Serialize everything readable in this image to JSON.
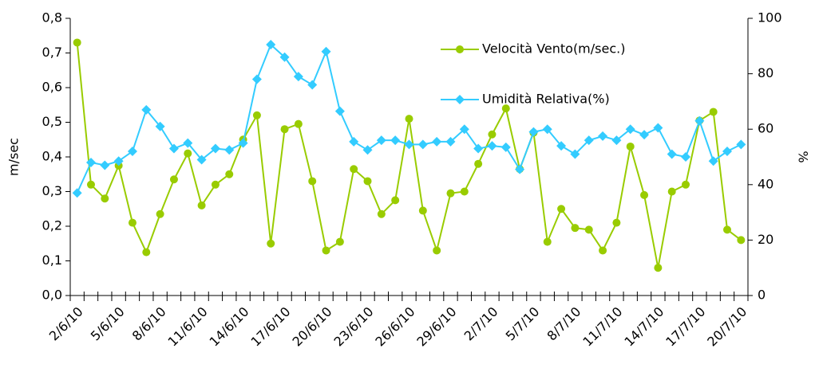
{
  "chart_data": {
    "type": "line",
    "y_label": "m/sec",
    "y2_label": "%",
    "categories": [
      "2/6/10",
      null,
      null,
      "5/6/10",
      null,
      null,
      "8/6/10",
      null,
      null,
      "11/6/10",
      null,
      null,
      "14/6/10",
      null,
      null,
      "17/6/10",
      null,
      null,
      "20/6/10",
      null,
      null,
      "23/6/10",
      null,
      null,
      "26/6/10",
      null,
      null,
      "29/6/10",
      null,
      null,
      "2/7/10",
      null,
      null,
      "5/7/10",
      null,
      null,
      "8/7/10",
      null,
      null,
      "11/7/10",
      null,
      null,
      "14/7/10",
      null,
      null,
      "17/7/10",
      null,
      null,
      "20/7/10"
    ],
    "series": [
      {
        "name": "Velocità Vento(m/sec.)",
        "color": "#99cc00",
        "marker": "circle",
        "values": [
          0.73,
          0.32,
          0.28,
          0.375,
          0.21,
          0.125,
          0.235,
          0.335,
          0.41,
          0.26,
          0.32,
          0.35,
          0.45,
          0.52,
          0.15,
          0.48,
          0.495,
          0.33,
          0.13,
          0.155,
          0.365,
          0.33,
          0.235,
          0.275,
          0.51,
          0.245,
          0.13,
          0.295,
          0.3,
          0.38,
          0.465,
          0.54,
          0.365,
          0.47,
          0.155,
          0.25,
          0.195,
          0.19,
          0.13,
          0.21,
          0.43,
          0.29,
          0.08,
          0.3,
          0.32,
          0.505,
          0.53,
          0.19,
          0.16
        ]
      },
      {
        "name": "Umidità Relativa(%)",
        "color": "#33ccff",
        "marker": "diamond",
        "axis": "y2",
        "values": [
          37,
          48,
          47,
          48.5,
          52,
          67,
          61,
          53,
          55,
          49,
          53,
          52.5,
          55,
          78,
          90.5,
          86,
          79,
          76,
          88,
          66.5,
          55.5,
          52.5,
          56,
          56,
          54.5,
          54.5,
          55.5,
          55.5,
          60,
          53,
          54,
          53.5,
          45.5,
          59,
          60,
          54,
          51,
          56,
          57.5,
          56,
          60,
          58,
          60.5,
          51,
          50,
          63,
          48.5,
          52,
          54.5
        ]
      }
    ],
    "ylim": [
      0,
      0.8
    ],
    "yticks": [
      {
        "value": 0,
        "label": "0,0"
      },
      {
        "value": 0.1,
        "label": "0,1"
      },
      {
        "value": 0.2,
        "label": "0,2"
      },
      {
        "value": 0.3,
        "label": "0,3"
      },
      {
        "value": 0.4,
        "label": "0,4"
      },
      {
        "value": 0.5,
        "label": "0,5"
      },
      {
        "value": 0.6,
        "label": "0,6"
      },
      {
        "value": 0.7,
        "label": "0,7"
      },
      {
        "value": 0.8,
        "label": "0,8"
      }
    ],
    "y2lim": [
      0,
      100
    ],
    "y2ticks": [
      0,
      20,
      40,
      60,
      80,
      100
    ],
    "grid": false,
    "legend": "inside-top"
  }
}
